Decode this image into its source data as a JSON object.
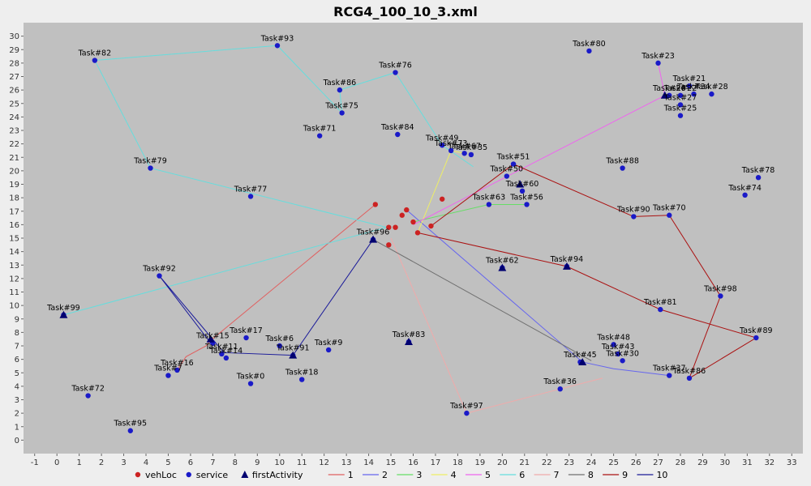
{
  "chart_data": {
    "type": "scatter",
    "title": "RCG4_100_10_3.xml",
    "xlim": [
      -1.5,
      33.5
    ],
    "ylim": [
      -1,
      31
    ],
    "x_ticks": [
      -1,
      0,
      1,
      2,
      3,
      4,
      5,
      6,
      7,
      8,
      9,
      10,
      11,
      12,
      13,
      14,
      15,
      16,
      17,
      18,
      19,
      20,
      21,
      22,
      23,
      24,
      25,
      26,
      27,
      28,
      29,
      30,
      31,
      32,
      33
    ],
    "y_ticks": [
      0,
      1,
      2,
      3,
      4,
      5,
      6,
      7,
      8,
      9,
      10,
      11,
      12,
      13,
      14,
      15,
      16,
      17,
      18,
      19,
      20,
      21,
      22,
      23,
      24,
      25,
      26,
      27,
      28,
      29,
      30
    ],
    "grid": false,
    "background": "#c0c0c0",
    "legend_position": "bottom",
    "legend": [
      {
        "name": "vehLoc",
        "marker": "circle",
        "color": "#cc2222"
      },
      {
        "name": "service",
        "marker": "circle",
        "color": "#1a1ac8"
      },
      {
        "name": "firstActivity",
        "marker": "triangle",
        "color": "#000070"
      },
      {
        "name": "1",
        "marker": "line",
        "color": "#e06060"
      },
      {
        "name": "2",
        "marker": "line",
        "color": "#6666ee"
      },
      {
        "name": "3",
        "marker": "line",
        "color": "#66dd66"
      },
      {
        "name": "4",
        "marker": "line",
        "color": "#eeee66"
      },
      {
        "name": "5",
        "marker": "line",
        "color": "#ee66ee"
      },
      {
        "name": "6",
        "marker": "line",
        "color": "#66dddd"
      },
      {
        "name": "7",
        "marker": "line",
        "color": "#f0aaaa"
      },
      {
        "name": "8",
        "marker": "line",
        "color": "#707070"
      },
      {
        "name": "9",
        "marker": "line",
        "color": "#aa1111"
      },
      {
        "name": "10",
        "marker": "line",
        "color": "#1a1a99"
      }
    ],
    "veh_loc": [
      [
        14.3,
        17.5
      ],
      [
        14.9,
        15.8
      ],
      [
        15.2,
        15.8
      ],
      [
        15.5,
        16.7
      ],
      [
        15.7,
        17.1
      ],
      [
        16.0,
        16.2
      ],
      [
        16.2,
        15.4
      ],
      [
        16.8,
        15.9
      ],
      [
        17.3,
        17.9
      ],
      [
        14.9,
        14.5
      ]
    ],
    "first_activity": [
      [
        0.3,
        9.3
      ],
      [
        6.9,
        7.5
      ],
      [
        10.6,
        6.3
      ],
      [
        14.2,
        14.9
      ],
      [
        15.8,
        7.3
      ],
      [
        20.0,
        12.8
      ],
      [
        22.9,
        12.9
      ],
      [
        23.6,
        5.8
      ],
      [
        27.3,
        25.6
      ],
      [
        20.8,
        19.0
      ]
    ],
    "service": [
      {
        "label": "Task#82",
        "x": 1.7,
        "y": 28.2
      },
      {
        "label": "Task#93",
        "x": 9.9,
        "y": 29.3
      },
      {
        "label": "Task#76",
        "x": 15.2,
        "y": 27.3
      },
      {
        "label": "Task#86",
        "x": 12.7,
        "y": 26.0
      },
      {
        "label": "Task#75",
        "x": 12.8,
        "y": 24.3
      },
      {
        "label": "Task#71",
        "x": 11.8,
        "y": 22.6
      },
      {
        "label": "Task#84",
        "x": 15.3,
        "y": 22.7
      },
      {
        "label": "Task#49",
        "x": 17.3,
        "y": 21.9
      },
      {
        "label": "Task#73",
        "x": 17.7,
        "y": 21.5
      },
      {
        "label": "Task#67",
        "x": 18.3,
        "y": 21.3
      },
      {
        "label": "Task#35",
        "x": 18.6,
        "y": 21.2
      },
      {
        "label": "Task#80",
        "x": 23.9,
        "y": 28.9
      },
      {
        "label": "Task#23",
        "x": 27.0,
        "y": 28.0
      },
      {
        "label": "Task#21",
        "x": 28.4,
        "y": 26.3
      },
      {
        "label": "Task#26",
        "x": 27.5,
        "y": 25.6
      },
      {
        "label": "Task#22",
        "x": 28.0,
        "y": 25.6
      },
      {
        "label": "Task#34",
        "x": 28.6,
        "y": 25.7
      },
      {
        "label": "Task#28",
        "x": 29.4,
        "y": 25.7
      },
      {
        "label": "Task#27",
        "x": 28.0,
        "y": 24.9
      },
      {
        "label": "Task#25",
        "x": 28.0,
        "y": 24.1
      },
      {
        "label": "Task#79",
        "x": 4.2,
        "y": 20.2
      },
      {
        "label": "Task#77",
        "x": 8.7,
        "y": 18.1
      },
      {
        "label": "Task#51",
        "x": 20.5,
        "y": 20.5
      },
      {
        "label": "Task#88",
        "x": 25.4,
        "y": 20.2
      },
      {
        "label": "Task#78",
        "x": 31.5,
        "y": 19.5
      },
      {
        "label": "Task#74",
        "x": 30.9,
        "y": 18.2
      },
      {
        "label": "Task#50",
        "x": 20.2,
        "y": 19.6
      },
      {
        "label": "Task#60",
        "x": 20.9,
        "y": 18.5
      },
      {
        "label": "Task#63",
        "x": 19.4,
        "y": 17.5
      },
      {
        "label": "Task#56",
        "x": 21.1,
        "y": 17.5
      },
      {
        "label": "Task#90",
        "x": 25.9,
        "y": 16.6
      },
      {
        "label": "Task#70",
        "x": 27.5,
        "y": 16.7
      },
      {
        "label": "Task#98",
        "x": 29.8,
        "y": 10.7
      },
      {
        "label": "Task#81",
        "x": 27.1,
        "y": 9.7
      },
      {
        "label": "Task#89",
        "x": 31.4,
        "y": 7.6
      },
      {
        "label": "Task#92",
        "x": 4.6,
        "y": 12.2
      },
      {
        "label": "Task#17",
        "x": 8.5,
        "y": 7.6
      },
      {
        "label": "Task#6",
        "x": 10.0,
        "y": 7.0
      },
      {
        "label": "Task#9",
        "x": 12.2,
        "y": 6.7
      },
      {
        "label": "Task#15",
        "x": 7.0,
        "y": 7.2
      },
      {
        "label": "Task#11",
        "x": 7.4,
        "y": 6.4
      },
      {
        "label": "Task#14",
        "x": 7.6,
        "y": 6.1
      },
      {
        "label": "Task#16",
        "x": 5.4,
        "y": 5.2
      },
      {
        "label": "Task#7",
        "x": 5.0,
        "y": 4.8
      },
      {
        "label": "Task#0",
        "x": 8.7,
        "y": 4.2
      },
      {
        "label": "Task#18",
        "x": 11.0,
        "y": 4.5
      },
      {
        "label": "Task#72",
        "x": 1.4,
        "y": 3.3
      },
      {
        "label": "Task#95",
        "x": 3.3,
        "y": 0.7
      },
      {
        "label": "Task#97",
        "x": 18.4,
        "y": 2.0
      },
      {
        "label": "Task#36",
        "x": 22.6,
        "y": 3.8
      },
      {
        "label": "Task#48",
        "x": 25.0,
        "y": 7.1
      },
      {
        "label": "Task#43",
        "x": 25.2,
        "y": 6.4
      },
      {
        "label": "Task#30",
        "x": 25.4,
        "y": 5.9
      },
      {
        "label": "Task#45",
        "x": 23.5,
        "y": 5.8
      },
      {
        "label": "Task#37",
        "x": 27.5,
        "y": 4.8
      },
      {
        "label": "Task#86",
        "x": 28.4,
        "y": 4.6
      },
      {
        "label": "Task#94",
        "x": 22.9,
        "y": 12.9
      },
      {
        "label": "Task#62",
        "x": 20.0,
        "y": 12.8
      },
      {
        "label": "Task#83",
        "x": 15.8,
        "y": 7.3
      },
      {
        "label": "Task#91",
        "x": 10.6,
        "y": 6.3
      },
      {
        "label": "Task#96",
        "x": 14.2,
        "y": 14.9
      },
      {
        "label": "Task#99",
        "x": 0.3,
        "y": 9.3
      }
    ],
    "series": [
      {
        "name": "1",
        "points": [
          [
            14.3,
            17.5
          ],
          [
            6.9,
            7.4
          ],
          [
            6.7,
            7.0
          ],
          [
            5.8,
            6.2
          ],
          [
            5.4,
            5.2
          ]
        ]
      },
      {
        "name": "2",
        "points": [
          [
            15.7,
            17.1
          ],
          [
            23.6,
            5.8
          ],
          [
            25.0,
            5.3
          ],
          [
            27.5,
            4.8
          ]
        ]
      },
      {
        "name": "3",
        "points": [
          [
            16.0,
            16.2
          ],
          [
            19.4,
            17.5
          ],
          [
            21.1,
            17.5
          ]
        ]
      },
      {
        "name": "4",
        "points": [
          [
            16.2,
            15.4
          ],
          [
            17.7,
            21.5
          ],
          [
            18.3,
            21.3
          ]
        ]
      },
      {
        "name": "5",
        "points": [
          [
            16.0,
            16.0
          ],
          [
            27.3,
            25.6
          ],
          [
            27.0,
            28.0
          ]
        ]
      },
      {
        "name": "6",
        "points": [
          [
            0.3,
            9.3
          ],
          [
            14.8,
            15.8
          ],
          [
            4.2,
            20.2
          ],
          [
            1.7,
            28.2
          ],
          [
            9.9,
            29.3
          ],
          [
            12.8,
            24.3
          ],
          [
            12.7,
            26.0
          ],
          [
            15.2,
            27.3
          ],
          [
            17.3,
            21.9
          ],
          [
            18.7,
            20.3
          ]
        ]
      },
      {
        "name": "7",
        "points": [
          [
            15.0,
            15.0
          ],
          [
            18.4,
            2.0
          ],
          [
            22.6,
            3.8
          ],
          [
            24.5,
            4.6
          ]
        ]
      },
      {
        "name": "8",
        "points": [
          [
            14.2,
            14.9
          ],
          [
            24.0,
            5.9
          ]
        ]
      },
      {
        "name": "9",
        "points": [
          [
            16.8,
            15.9
          ],
          [
            20.5,
            20.5
          ],
          [
            25.9,
            16.6
          ],
          [
            27.5,
            16.7
          ],
          [
            29.8,
            10.7
          ],
          [
            28.4,
            4.6
          ],
          [
            31.4,
            7.6
          ],
          [
            27.1,
            9.7
          ],
          [
            22.9,
            12.9
          ],
          [
            16.2,
            15.4
          ]
        ]
      },
      {
        "name": "10",
        "points": [
          [
            14.2,
            14.9
          ],
          [
            10.6,
            6.3
          ],
          [
            7.5,
            6.5
          ],
          [
            4.6,
            12.2
          ],
          [
            7.0,
            7.0
          ]
        ]
      }
    ]
  }
}
